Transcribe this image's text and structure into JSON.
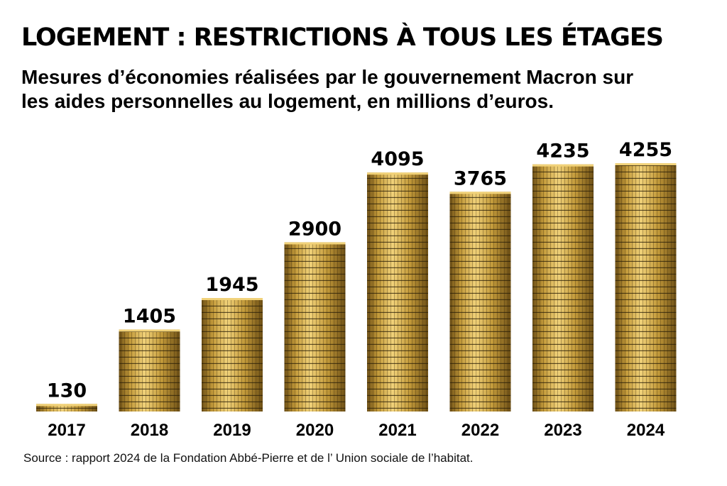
{
  "header": {
    "title": "LOGEMENT : RESTRICTIONS À TOUS LES ÉTAGES",
    "subtitle": "Mesures d’économies réalisées par le gouvernement Macron sur les aides personnelles au logement, en millions d’euros."
  },
  "footer": {
    "source": "Source : rapport 2024 de la Fondation Abbé-Pierre et de l’ Union sociale de l’habitat."
  },
  "colors": {
    "coin_light": "#f1d27a",
    "coin_mid": "#c39a3a",
    "coin_dark": "#6e5016",
    "coin_edge": "#3d2c0a"
  },
  "chart_data": {
    "type": "bar",
    "title": "LOGEMENT : RESTRICTIONS À TOUS LES ÉTAGES",
    "subtitle": "Mesures d’économies réalisées par le gouvernement Macron sur les aides personnelles au logement, en millions d’euros.",
    "categories": [
      "2017",
      "2018",
      "2019",
      "2020",
      "2021",
      "2022",
      "2023",
      "2024"
    ],
    "values": [
      130,
      1405,
      1945,
      2900,
      4095,
      3765,
      4235,
      4255
    ],
    "data_labels": [
      "130",
      "1405",
      "1945",
      "2900",
      "4095",
      "3765",
      "4235",
      "4255"
    ],
    "xlabel": "",
    "ylabel": "",
    "ylim": [
      0,
      4400
    ],
    "grid": false,
    "legend": "none",
    "mark_style": "coin-stacks"
  }
}
